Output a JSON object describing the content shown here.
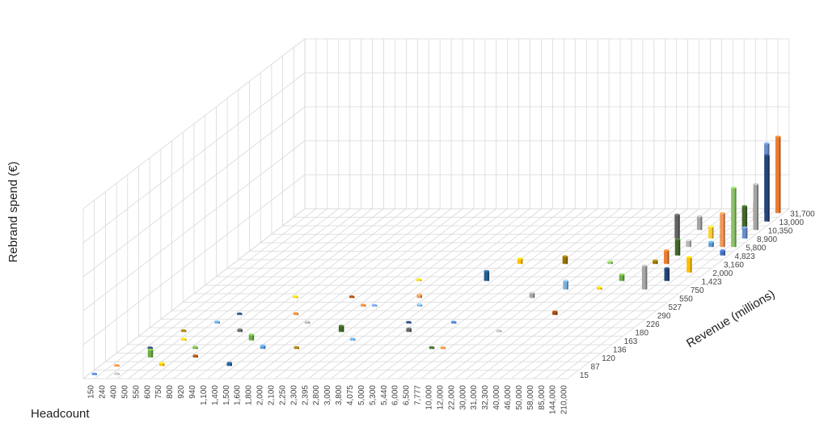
{
  "chart_data": {
    "type": "bar3d",
    "title": "",
    "xlabel": "Headcount",
    "ylabel": "Revenue (millions)",
    "zlabel": "Rebrand spend (€)",
    "grid": true,
    "legend": "none",
    "x_categories": [
      "150",
      "240",
      "400",
      "500",
      "550",
      "600",
      "750",
      "800",
      "920",
      "940",
      "1,100",
      "1,400",
      "1,500",
      "1,600",
      "1,800",
      "2,000",
      "2,100",
      "2,250",
      "2,300",
      "2,395",
      "2,800",
      "3,000",
      "3,800",
      "4,075",
      "5,000",
      "5,300",
      "5,440",
      "6,000",
      "6,500",
      "7,777",
      "10,000",
      "12,000",
      "22,000",
      "30,000",
      "31,000",
      "32,300",
      "40,000",
      "46,000",
      "50,000",
      "58,000",
      "85,000",
      "144,000",
      "210,000"
    ],
    "y_categories": [
      "15",
      "87",
      "120",
      "136",
      "163",
      "180",
      "226",
      "290",
      "527",
      "550",
      "750",
      "1,423",
      "2,000",
      "3,160",
      "4,823",
      "5,800",
      "8,900",
      "10,350",
      "13,000",
      "31,700"
    ],
    "zlim": [
      0,
      100
    ],
    "palette": [
      "#4472c4",
      "#ed7d31",
      "#a5a5a5",
      "#ffc000",
      "#5b9bd5",
      "#70ad47",
      "#264478",
      "#9e480e",
      "#636363",
      "#997300",
      "#255e91",
      "#43682b",
      "#698ed0",
      "#f1975a",
      "#b7b7b7",
      "#ffcd33",
      "#7cafdd",
      "#8cc168"
    ],
    "bars": [
      {
        "x": 0,
        "y": 0,
        "z": 0.4,
        "c": 0
      },
      {
        "x": 1,
        "y": 1,
        "z": 0.4,
        "c": 1
      },
      {
        "x": 2,
        "y": 0,
        "z": 0.5,
        "c": 2
      },
      {
        "x": 2,
        "y": 3,
        "z": 0.8,
        "c": 6
      },
      {
        "x": 3,
        "y": 2,
        "z": 4.6,
        "c": 5
      },
      {
        "x": 3,
        "y": 5,
        "z": 0.9,
        "c": 9
      },
      {
        "x": 4,
        "y": 4,
        "z": 1.0,
        "c": 3
      },
      {
        "x": 5,
        "y": 1,
        "z": 1.6,
        "c": 3
      },
      {
        "x": 5,
        "y": 6,
        "z": 1.1,
        "c": 4
      },
      {
        "x": 6,
        "y": 3,
        "z": 1.2,
        "c": 5
      },
      {
        "x": 6,
        "y": 7,
        "z": 0.8,
        "c": 6
      },
      {
        "x": 7,
        "y": 2,
        "z": 1.1,
        "c": 7
      },
      {
        "x": 8,
        "y": 5,
        "z": 1.4,
        "c": 8
      },
      {
        "x": 9,
        "y": 9,
        "z": 0.9,
        "c": 3
      },
      {
        "x": 10,
        "y": 4,
        "z": 3.4,
        "c": 5
      },
      {
        "x": 11,
        "y": 1,
        "z": 1.8,
        "c": 10
      },
      {
        "x": 11,
        "y": 7,
        "z": 1.0,
        "c": 1
      },
      {
        "x": 12,
        "y": 3,
        "z": 2.0,
        "c": 4
      },
      {
        "x": 13,
        "y": 6,
        "z": 1.0,
        "c": 2
      },
      {
        "x": 14,
        "y": 9,
        "z": 0.9,
        "c": 7
      },
      {
        "x": 15,
        "y": 3,
        "z": 1.0,
        "c": 9
      },
      {
        "x": 16,
        "y": 8,
        "z": 1.0,
        "c": 1
      },
      {
        "x": 17,
        "y": 5,
        "z": 3.6,
        "c": 11
      },
      {
        "x": 17,
        "y": 8,
        "z": 0.8,
        "c": 12
      },
      {
        "x": 18,
        "y": 11,
        "z": 0.9,
        "c": 3
      },
      {
        "x": 19,
        "y": 4,
        "z": 1.0,
        "c": 4
      },
      {
        "x": 20,
        "y": 9,
        "z": 2.0,
        "c": 13
      },
      {
        "x": 21,
        "y": 8,
        "z": 1.2,
        "c": 16
      },
      {
        "x": 22,
        "y": 6,
        "z": 0.8,
        "c": 6
      },
      {
        "x": 23,
        "y": 5,
        "z": 2.0,
        "c": 8
      },
      {
        "x": 24,
        "y": 11,
        "z": 5.8,
        "c": 10
      },
      {
        "x": 25,
        "y": 13,
        "z": 3.2,
        "c": 3
      },
      {
        "x": 26,
        "y": 6,
        "z": 0.9,
        "c": 0
      },
      {
        "x": 27,
        "y": 3,
        "z": 1.0,
        "c": 11
      },
      {
        "x": 28,
        "y": 3,
        "z": 0.8,
        "c": 1
      },
      {
        "x": 29,
        "y": 13,
        "z": 4.5,
        "c": 9
      },
      {
        "x": 30,
        "y": 9,
        "z": 3.0,
        "c": 2
      },
      {
        "x": 31,
        "y": 5,
        "z": 0.8,
        "c": 2
      },
      {
        "x": 32,
        "y": 10,
        "z": 5.2,
        "c": 16
      },
      {
        "x": 33,
        "y": 13,
        "z": 1.5,
        "c": 17
      },
      {
        "x": 34,
        "y": 7,
        "z": 2.0,
        "c": 7
      },
      {
        "x": 35,
        "y": 10,
        "z": 1.2,
        "c": 3
      },
      {
        "x": 36,
        "y": 11,
        "z": 3.8,
        "c": 5
      },
      {
        "x": 37,
        "y": 13,
        "z": 2.0,
        "c": 9
      },
      {
        "x": 38,
        "y": 13,
        "z": 8.0,
        "c": 1
      },
      {
        "x": 38,
        "y": 14,
        "z": 9.5,
        "c": 11
      },
      {
        "x": 39,
        "y": 10,
        "z": 14.0,
        "c": 2
      },
      {
        "x": 40,
        "y": 11,
        "z": 7.5,
        "c": 6
      },
      {
        "x": 41,
        "y": 12,
        "z": 9.0,
        "c": 3
      },
      {
        "x": 42,
        "y": 14,
        "z": 3.0,
        "c": 0
      },
      {
        "x": 36,
        "y": 16,
        "z": 14.0,
        "c": 8
      },
      {
        "x": 37,
        "y": 17,
        "z": 8.0,
        "c": 2
      },
      {
        "x": 38,
        "y": 15,
        "z": 4.0,
        "c": 14
      },
      {
        "x": 39,
        "y": 16,
        "z": 7.0,
        "c": 15
      },
      {
        "x": 40,
        "y": 16,
        "z": 2.5,
        "c": 2
      },
      {
        "x": 40,
        "y": 15,
        "z": 3.0,
        "c": 4
      },
      {
        "x": 41,
        "y": 15,
        "z": 20.0,
        "c": 13
      },
      {
        "x": 41,
        "y": 17,
        "z": 14.0,
        "c": 11
      },
      {
        "x": 42,
        "y": 16,
        "z": 6.5,
        "c": 12
      },
      {
        "x": 42,
        "y": 15,
        "z": 35.0,
        "c": 17
      },
      {
        "x": 41,
        "y": 18,
        "z": 11.0,
        "c": 1
      },
      {
        "x": 42,
        "y": 17,
        "z": 27.0,
        "c": 2
      },
      {
        "x": 42,
        "y": 18,
        "z": 39.0,
        "c": 6
      },
      {
        "x": 41,
        "y": 19,
        "z": 41.0,
        "c": 12
      },
      {
        "x": 42,
        "y": 19,
        "z": 30.0,
        "c": 4
      },
      {
        "x": 42,
        "y": 19,
        "z": 45.0,
        "c": 1
      }
    ]
  }
}
